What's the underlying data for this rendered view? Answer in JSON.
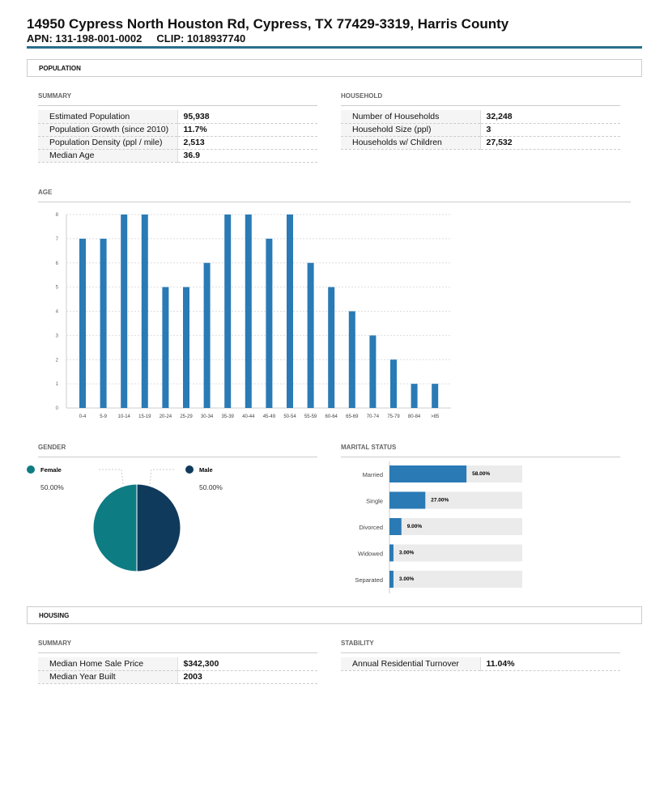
{
  "header": {
    "title": "14950 Cypress North Houston Rd, Cypress, TX 77429-3319, Harris County",
    "apn": "APN: 131-198-001-0002",
    "clip": "CLIP: 1018937740"
  },
  "population": {
    "label": "POPULATION",
    "summary": {
      "title": "SUMMARY",
      "rows": [
        {
          "label": "Estimated Population",
          "value": "95,938"
        },
        {
          "label": "Population Growth (since 2010)",
          "value": "11.7%"
        },
        {
          "label": "Population Density (ppl / mile)",
          "value": "2,513"
        },
        {
          "label": "Median Age",
          "value": "36.9"
        }
      ]
    },
    "household": {
      "title": "HOUSEHOLD",
      "rows": [
        {
          "label": "Number of Households",
          "value": "32,248"
        },
        {
          "label": "Household Size (ppl)",
          "value": "3"
        },
        {
          "label": "Households w/ Children",
          "value": "27,532"
        }
      ]
    },
    "age_title": "AGE",
    "gender_title": "GENDER",
    "marital_title": "MARITAL STATUS"
  },
  "housing": {
    "label": "HOUSING",
    "summary": {
      "title": "SUMMARY",
      "rows": [
        {
          "label": "Median Home Sale Price",
          "value": "$342,300"
        },
        {
          "label": "Median Year Built",
          "value": "2003"
        }
      ]
    },
    "stability": {
      "title": "STABILITY",
      "rows": [
        {
          "label": "Annual Residential Turnover",
          "value": "11.04%"
        }
      ]
    }
  },
  "chart_data": [
    {
      "type": "bar",
      "title": "AGE",
      "categories": [
        "0-4",
        "5-9",
        "10-14",
        "15-19",
        "20-24",
        "25-29",
        "30-34",
        "35-39",
        "40-44",
        "45-49",
        "50-54",
        "55-59",
        "60-64",
        "65-69",
        "70-74",
        "75-79",
        "80-84",
        ">85"
      ],
      "values": [
        7,
        7,
        8,
        8,
        5,
        5,
        6,
        8,
        8,
        7,
        8,
        6,
        5,
        4,
        3,
        2,
        1,
        1
      ],
      "ylim": [
        0,
        8
      ],
      "yticks": [
        "0",
        "1",
        "2",
        "3",
        "4",
        "5",
        "6",
        "7",
        "8"
      ],
      "color": "#2a7ab5",
      "grid": true
    },
    {
      "type": "pie",
      "title": "GENDER",
      "slices": [
        {
          "label": "Female",
          "value": 50,
          "text": "50.00%",
          "color": "#0e7c83"
        },
        {
          "label": "Male",
          "value": 50,
          "text": "50.00%",
          "color": "#0f3a5c"
        }
      ]
    },
    {
      "type": "bar",
      "orientation": "horizontal",
      "title": "MARITAL STATUS",
      "categories": [
        "Married",
        "Single",
        "Divorced",
        "Widowed",
        "Separated"
      ],
      "values": [
        58,
        27,
        9,
        3,
        3
      ],
      "labels": [
        "58.00%",
        "27.00%",
        "9.00%",
        "3.00%",
        "3.00%"
      ],
      "xlim": [
        0,
        100
      ],
      "color": "#2a7ab5"
    }
  ]
}
